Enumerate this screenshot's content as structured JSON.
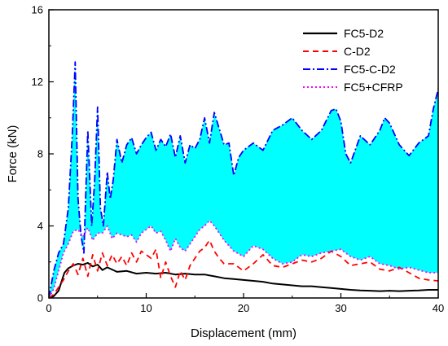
{
  "chart_data": {
    "type": "line",
    "title": "",
    "xlabel": "Displacement (mm)",
    "ylabel": "Force (kN)",
    "xlim": [
      0,
      40
    ],
    "ylim": [
      0,
      16
    ],
    "xticks": [
      "0",
      "10",
      "20",
      "30",
      "40"
    ],
    "yticks": [
      "0",
      "4",
      "8",
      "12",
      "16"
    ],
    "grid": false,
    "legend_position": "top-right",
    "fill_between": {
      "upper": "FC5-C-D2",
      "lower": "FC5+CFRP",
      "color": "#00FFFF"
    },
    "series": [
      {
        "name": "FC5-D2",
        "color": "#000000",
        "style": "solid",
        "x": [
          0,
          0.5,
          1,
          1.3,
          1.6,
          2,
          2.5,
          3,
          3.5,
          4,
          4.5,
          5,
          5.5,
          6,
          7,
          8,
          9,
          10,
          11,
          12,
          13,
          14,
          15,
          16,
          17,
          18,
          19,
          20,
          21,
          22,
          23,
          24,
          25,
          26,
          27,
          28,
          29,
          30,
          31,
          32,
          33,
          34,
          35,
          36,
          37,
          38,
          39,
          40
        ],
        "y": [
          0,
          0.1,
          0.4,
          0.9,
          1.4,
          1.65,
          1.8,
          1.9,
          1.85,
          1.95,
          1.75,
          1.85,
          1.55,
          1.7,
          1.45,
          1.5,
          1.35,
          1.4,
          1.35,
          1.4,
          1.3,
          1.35,
          1.3,
          1.3,
          1.2,
          1.1,
          1.05,
          1.0,
          0.95,
          0.9,
          0.8,
          0.75,
          0.7,
          0.65,
          0.65,
          0.6,
          0.55,
          0.5,
          0.45,
          0.42,
          0.4,
          0.38,
          0.4,
          0.38,
          0.4,
          0.42,
          0.45,
          0.45
        ]
      },
      {
        "name": "C-D2",
        "color": "#FF0000",
        "style": "dash",
        "x": [
          0,
          0.5,
          1,
          1.5,
          2,
          2.5,
          3,
          3.5,
          4,
          4.5,
          5,
          5.5,
          6,
          6.5,
          7,
          7.5,
          8,
          8.5,
          9,
          9.5,
          10,
          10.5,
          11,
          11.5,
          12,
          12.5,
          13,
          13.5,
          14,
          14.5,
          15,
          15.5,
          16,
          16.5,
          17,
          17.5,
          18,
          19,
          20,
          21,
          22,
          23,
          24,
          25,
          26,
          27,
          28,
          29,
          30,
          31,
          32,
          33,
          34,
          35,
          36,
          37,
          38,
          39,
          40
        ],
        "y": [
          0,
          0.2,
          0.6,
          1.0,
          1.5,
          1.9,
          1.3,
          2.2,
          1.2,
          2.4,
          1.5,
          2.5,
          1.8,
          2.4,
          1.9,
          2.3,
          1.8,
          2.5,
          2.0,
          2.6,
          2.4,
          2.2,
          2.7,
          1.1,
          2.0,
          1.2,
          0.6,
          1.5,
          1.0,
          1.8,
          2.2,
          2.6,
          2.8,
          3.2,
          2.6,
          2.2,
          1.9,
          1.9,
          1.5,
          1.9,
          2.4,
          1.8,
          1.7,
          1.9,
          2.1,
          2.0,
          2.2,
          2.6,
          2.3,
          1.8,
          1.9,
          2.0,
          1.6,
          1.5,
          1.7,
          1.4,
          1.1,
          1.0,
          0.95
        ]
      },
      {
        "name": "FC5-C-D2",
        "color": "#0000FF",
        "style": "dashdot",
        "x": [
          0,
          0.5,
          1,
          1.5,
          2,
          2.4,
          2.7,
          3.0,
          3.3,
          3.6,
          4.0,
          4.4,
          4.7,
          5.0,
          5.3,
          5.6,
          6.0,
          6.3,
          6.6,
          7.0,
          7.5,
          8,
          8.5,
          9,
          9.5,
          10,
          10.5,
          11,
          11.5,
          12,
          12.5,
          13,
          13.5,
          14,
          14.5,
          15,
          15.5,
          16,
          16.5,
          17,
          17.5,
          18,
          18.5,
          19,
          19.5,
          20,
          21,
          22,
          23,
          24,
          25,
          26,
          27,
          28,
          29,
          29.5,
          30,
          30.5,
          31,
          32,
          33,
          34,
          34.5,
          35,
          36,
          37,
          38,
          39,
          39.5,
          40
        ],
        "y": [
          0,
          1.5,
          2.5,
          3.0,
          5.0,
          9.0,
          13.1,
          5.5,
          3.5,
          2.5,
          9.3,
          4.0,
          6.5,
          10.6,
          5.0,
          4.0,
          7.0,
          5.5,
          6.5,
          8.8,
          7.5,
          8.5,
          8.9,
          8.0,
          8.5,
          8.9,
          9.2,
          8.2,
          8.8,
          8.4,
          9.1,
          7.8,
          9.0,
          7.5,
          8.5,
          8.3,
          8.8,
          10.0,
          8.6,
          10.3,
          9.4,
          8.5,
          8.6,
          6.8,
          7.8,
          8.2,
          8.6,
          8.2,
          9.3,
          9.6,
          10.0,
          9.3,
          8.8,
          9.3,
          10.4,
          10.5,
          9.8,
          8.0,
          7.5,
          9.0,
          8.5,
          9.3,
          10.0,
          9.7,
          8.5,
          7.9,
          8.6,
          9.0,
          10.5,
          11.6
        ]
      },
      {
        "name": "FC5+CFRP",
        "color": "#FF00FF",
        "style": "dot",
        "x": [
          0,
          0.5,
          1,
          1.5,
          2,
          2.5,
          3,
          3.5,
          4,
          4.5,
          5,
          5.5,
          6,
          6.5,
          7,
          7.5,
          8,
          8.5,
          9,
          9.5,
          10,
          10.5,
          11,
          11.5,
          12,
          12.5,
          13,
          13.5,
          14,
          14.5,
          15,
          15.5,
          16,
          16.5,
          17,
          17.5,
          18,
          19,
          20,
          21,
          22,
          23,
          24,
          25,
          26,
          27,
          28,
          29,
          30,
          31,
          32,
          33,
          34,
          35,
          36,
          37,
          38,
          39,
          40
        ],
        "y": [
          0,
          0.5,
          1.5,
          2.5,
          3.0,
          3.7,
          3.8,
          3.4,
          3.9,
          3.2,
          3.6,
          3.6,
          4.0,
          3.3,
          3.6,
          3.5,
          3.4,
          3.5,
          3.1,
          3.6,
          3.8,
          4.0,
          3.6,
          3.7,
          3.2,
          2.6,
          3.3,
          2.8,
          2.6,
          3.0,
          3.4,
          3.8,
          4.0,
          4.3,
          4.0,
          3.6,
          3.2,
          2.6,
          2.3,
          2.9,
          2.7,
          2.2,
          1.9,
          2.0,
          2.4,
          2.3,
          2.5,
          2.6,
          2.7,
          2.3,
          2.1,
          2.3,
          1.9,
          1.8,
          1.6,
          1.7,
          1.55,
          1.4,
          1.4
        ]
      }
    ]
  }
}
